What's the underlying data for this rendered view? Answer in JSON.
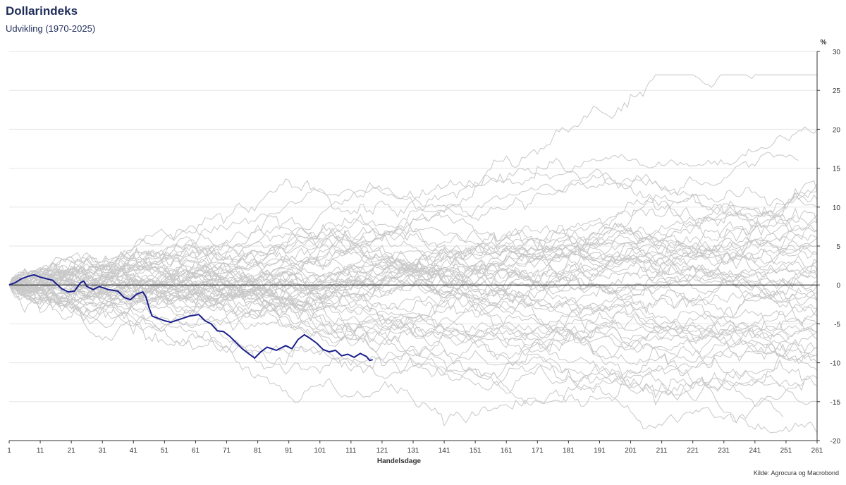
{
  "header": {
    "title": "Dollarindeks",
    "subtitle": "Udvikling (1970-2025)"
  },
  "footer": {
    "source": "Kilde: Agrocura og Macrobond"
  },
  "colors": {
    "history": "#c8c8c8",
    "current": "#1a1f8c",
    "zero_line": "#000000",
    "grid": "#e6e6e6",
    "title": "#1f2d5a"
  },
  "chart_data": {
    "type": "line",
    "title": "Dollarindeks",
    "subtitle": "Udvikling (1970-2025)",
    "xlabel": "Handelsdage",
    "ylabel": "%",
    "xlim": [
      1,
      261
    ],
    "ylim": [
      -20,
      30
    ],
    "x_ticks": [
      1,
      11,
      21,
      31,
      41,
      51,
      61,
      71,
      81,
      91,
      101,
      111,
      121,
      131,
      141,
      151,
      161,
      171,
      181,
      191,
      201,
      211,
      221,
      231,
      241,
      251,
      261
    ],
    "y_ticks": [
      -20,
      -15,
      -10,
      -5,
      0,
      5,
      10,
      15,
      20,
      25,
      30
    ],
    "grid": "horizontal",
    "y_axis_side": "right",
    "historical_paths_count": 55,
    "historical_final_values": [
      16,
      27,
      20,
      12,
      12,
      11,
      9,
      8,
      7,
      7,
      6,
      5,
      4,
      3,
      2,
      1,
      0.5,
      0,
      -1,
      -2,
      -3,
      -4,
      -5,
      -5,
      -6,
      -6,
      -7,
      -7,
      -8,
      -8,
      -9,
      -10,
      -11,
      -12,
      -13,
      -15,
      -17,
      -19,
      10,
      8,
      6,
      3,
      1,
      -2,
      4,
      9,
      13,
      -3,
      -9,
      2,
      5,
      -6,
      -1,
      7,
      -12
    ],
    "current_series": {
      "points": [
        [
          1,
          0
        ],
        [
          3,
          0.3
        ],
        [
          5,
          0.8
        ],
        [
          7,
          1.1
        ],
        [
          9,
          1.3
        ],
        [
          11,
          1.0
        ],
        [
          13,
          0.8
        ],
        [
          15,
          0.6
        ],
        [
          16,
          0.2
        ],
        [
          18,
          -0.5
        ],
        [
          20,
          -0.9
        ],
        [
          22,
          -0.8
        ],
        [
          24,
          0.3
        ],
        [
          25,
          0.5
        ],
        [
          26,
          -0.2
        ],
        [
          28,
          -0.6
        ],
        [
          30,
          -0.2
        ],
        [
          33,
          -0.6
        ],
        [
          36,
          -0.8
        ],
        [
          38,
          -1.6
        ],
        [
          40,
          -1.9
        ],
        [
          42,
          -1.2
        ],
        [
          44,
          -0.9
        ],
        [
          45,
          -1.5
        ],
        [
          46,
          -2.9
        ],
        [
          47,
          -4.0
        ],
        [
          49,
          -4.3
        ],
        [
          51,
          -4.6
        ],
        [
          53,
          -4.8
        ],
        [
          56,
          -4.4
        ],
        [
          59,
          -4.0
        ],
        [
          62,
          -3.8
        ],
        [
          64,
          -4.6
        ],
        [
          66,
          -5.0
        ],
        [
          68,
          -5.9
        ],
        [
          70,
          -6.0
        ],
        [
          72,
          -6.6
        ],
        [
          74,
          -7.4
        ],
        [
          76,
          -8.2
        ],
        [
          78,
          -8.8
        ],
        [
          80,
          -9.4
        ],
        [
          82,
          -8.6
        ],
        [
          84,
          -8.0
        ],
        [
          87,
          -8.4
        ],
        [
          90,
          -7.8
        ],
        [
          92,
          -8.2
        ],
        [
          94,
          -7.0
        ],
        [
          96,
          -6.4
        ],
        [
          98,
          -6.9
        ],
        [
          100,
          -7.5
        ],
        [
          102,
          -8.3
        ],
        [
          104,
          -8.6
        ],
        [
          106,
          -8.4
        ],
        [
          108,
          -9.1
        ],
        [
          110,
          -8.9
        ],
        [
          112,
          -9.3
        ],
        [
          114,
          -8.8
        ],
        [
          116,
          -9.2
        ],
        [
          117,
          -9.7
        ],
        [
          118,
          -9.6
        ]
      ]
    }
  }
}
